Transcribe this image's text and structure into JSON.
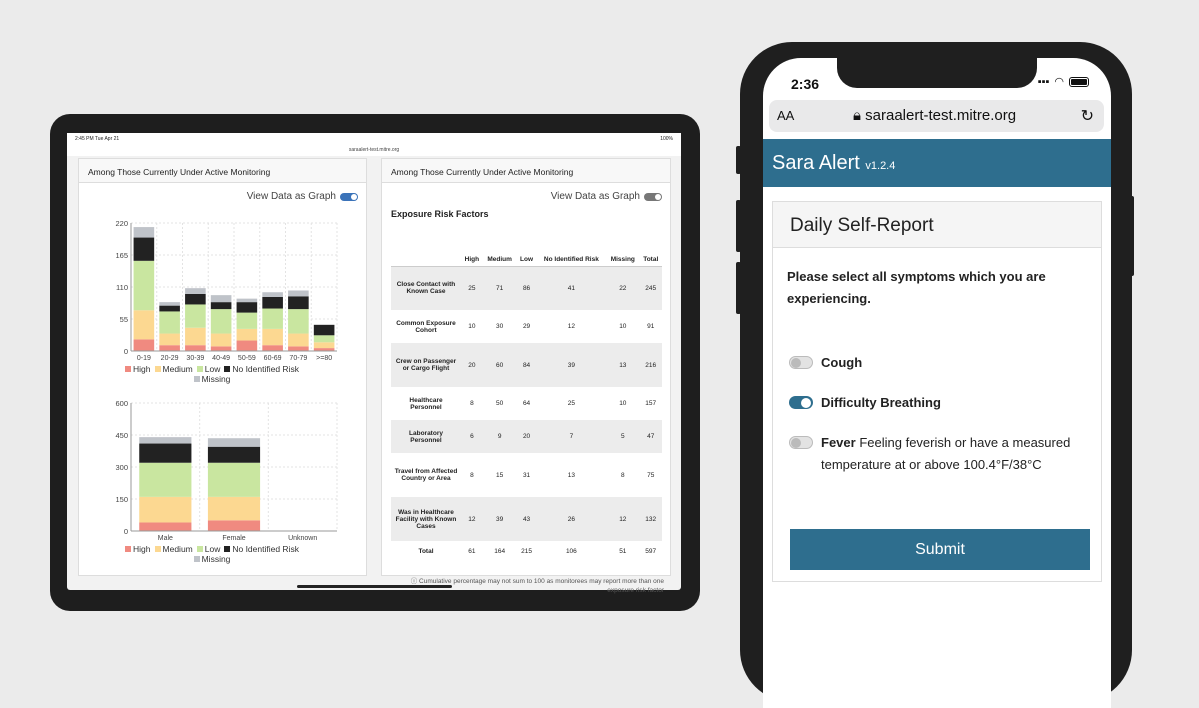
{
  "tablet": {
    "status_time": "2:45 PM   Tue Apr 21",
    "status_right": "100%",
    "url": "saraalert-test.mitre.org",
    "left_card": {
      "title": "Among Those Currently Under Active Monitoring",
      "toggle_label": "View Data as Graph"
    },
    "right_card": {
      "title": "Among Those Currently Under Active Monitoring",
      "toggle_label": "View Data as Graph",
      "table_title": "Exposure Risk Factors",
      "columns": [
        "",
        "High",
        "Medium",
        "Low",
        "No Identified Risk",
        "Missing",
        "Total"
      ],
      "rows": [
        {
          "label": "Close Contact with Known Case",
          "cells": [
            "25",
            "71",
            "86",
            "41",
            "22",
            "245"
          ]
        },
        {
          "label": "Common Exposure Cohort",
          "cells": [
            "10",
            "30",
            "29",
            "12",
            "10",
            "91"
          ]
        },
        {
          "label": "Crew on Passenger or Cargo Flight",
          "cells": [
            "20",
            "60",
            "84",
            "39",
            "13",
            "216"
          ]
        },
        {
          "label": "Healthcare Personnel",
          "cells": [
            "8",
            "50",
            "64",
            "25",
            "10",
            "157"
          ]
        },
        {
          "label": "Laboratory Personnel",
          "cells": [
            "6",
            "9",
            "20",
            "7",
            "5",
            "47"
          ]
        },
        {
          "label": "Travel from Affected Country or Area",
          "cells": [
            "8",
            "15",
            "31",
            "13",
            "8",
            "75"
          ]
        },
        {
          "label": "Was in Healthcare Facility with Known Cases",
          "cells": [
            "12",
            "39",
            "43",
            "26",
            "12",
            "132"
          ]
        },
        {
          "label": "Total",
          "cells": [
            "61",
            "164",
            "215",
            "106",
            "51",
            "597"
          ]
        }
      ],
      "footnote": "Cumulative percentage may not sum to 100 as monitorees may report more than one exposure risk factor"
    }
  },
  "chart_data": [
    {
      "type": "bar",
      "stacked": true,
      "categories": [
        "0-19",
        "20-29",
        "30-39",
        "40-49",
        "50-59",
        "60-69",
        "70-79",
        ">=80"
      ],
      "series": [
        {
          "name": "High",
          "values": [
            20,
            10,
            10,
            8,
            18,
            10,
            8,
            5
          ]
        },
        {
          "name": "Medium",
          "values": [
            50,
            20,
            30,
            22,
            20,
            28,
            22,
            10
          ]
        },
        {
          "name": "Low",
          "values": [
            85,
            38,
            40,
            42,
            28,
            35,
            42,
            12
          ]
        },
        {
          "name": "No Identified Risk",
          "values": [
            40,
            10,
            18,
            12,
            18,
            20,
            22,
            18
          ]
        },
        {
          "name": "Missing",
          "values": [
            18,
            6,
            10,
            12,
            6,
            8,
            10,
            0
          ]
        }
      ],
      "ylim": [
        0,
        220
      ],
      "yticks": [
        "220",
        "165",
        "110",
        "55",
        "0"
      ],
      "grid": true,
      "legend": "bottom"
    },
    {
      "type": "bar",
      "stacked": true,
      "categories": [
        "Male",
        "Female",
        "Unknown"
      ],
      "series": [
        {
          "name": "High",
          "values": [
            40,
            50,
            0
          ]
        },
        {
          "name": "Medium",
          "values": [
            120,
            110,
            0
          ]
        },
        {
          "name": "Low",
          "values": [
            160,
            160,
            0
          ]
        },
        {
          "name": "No Identified Risk",
          "values": [
            90,
            75,
            0
          ]
        },
        {
          "name": "Missing",
          "values": [
            30,
            40,
            0
          ]
        }
      ],
      "ylim": [
        0,
        600
      ],
      "yticks": [
        "600",
        "450",
        "300",
        "150",
        "0"
      ],
      "grid": true,
      "legend": "bottom"
    }
  ],
  "legend_colors": {
    "High": "#f08a80",
    "Medium": "#fcd891",
    "Low": "#c9e6a0",
    "No Identified Risk": "#222222",
    "Missing": "#bfc3c9"
  },
  "phone": {
    "time": "2:36",
    "url_aa": "AA",
    "url": "saraalert-test.mitre.org",
    "app_name": "Sara Alert",
    "version": "v1.2.4",
    "card_title": "Daily Self-Report",
    "prompt": "Please select all symptoms which you are experiencing.",
    "symptoms": [
      {
        "name": "Cough",
        "desc": "",
        "checked": false
      },
      {
        "name": "Difficulty Breathing",
        "desc": "",
        "checked": true
      },
      {
        "name": "Fever",
        "desc": "Feeling feverish or have a measured temperature at or above 100.4°F/38°C",
        "checked": false
      }
    ],
    "submit_label": "Submit"
  }
}
